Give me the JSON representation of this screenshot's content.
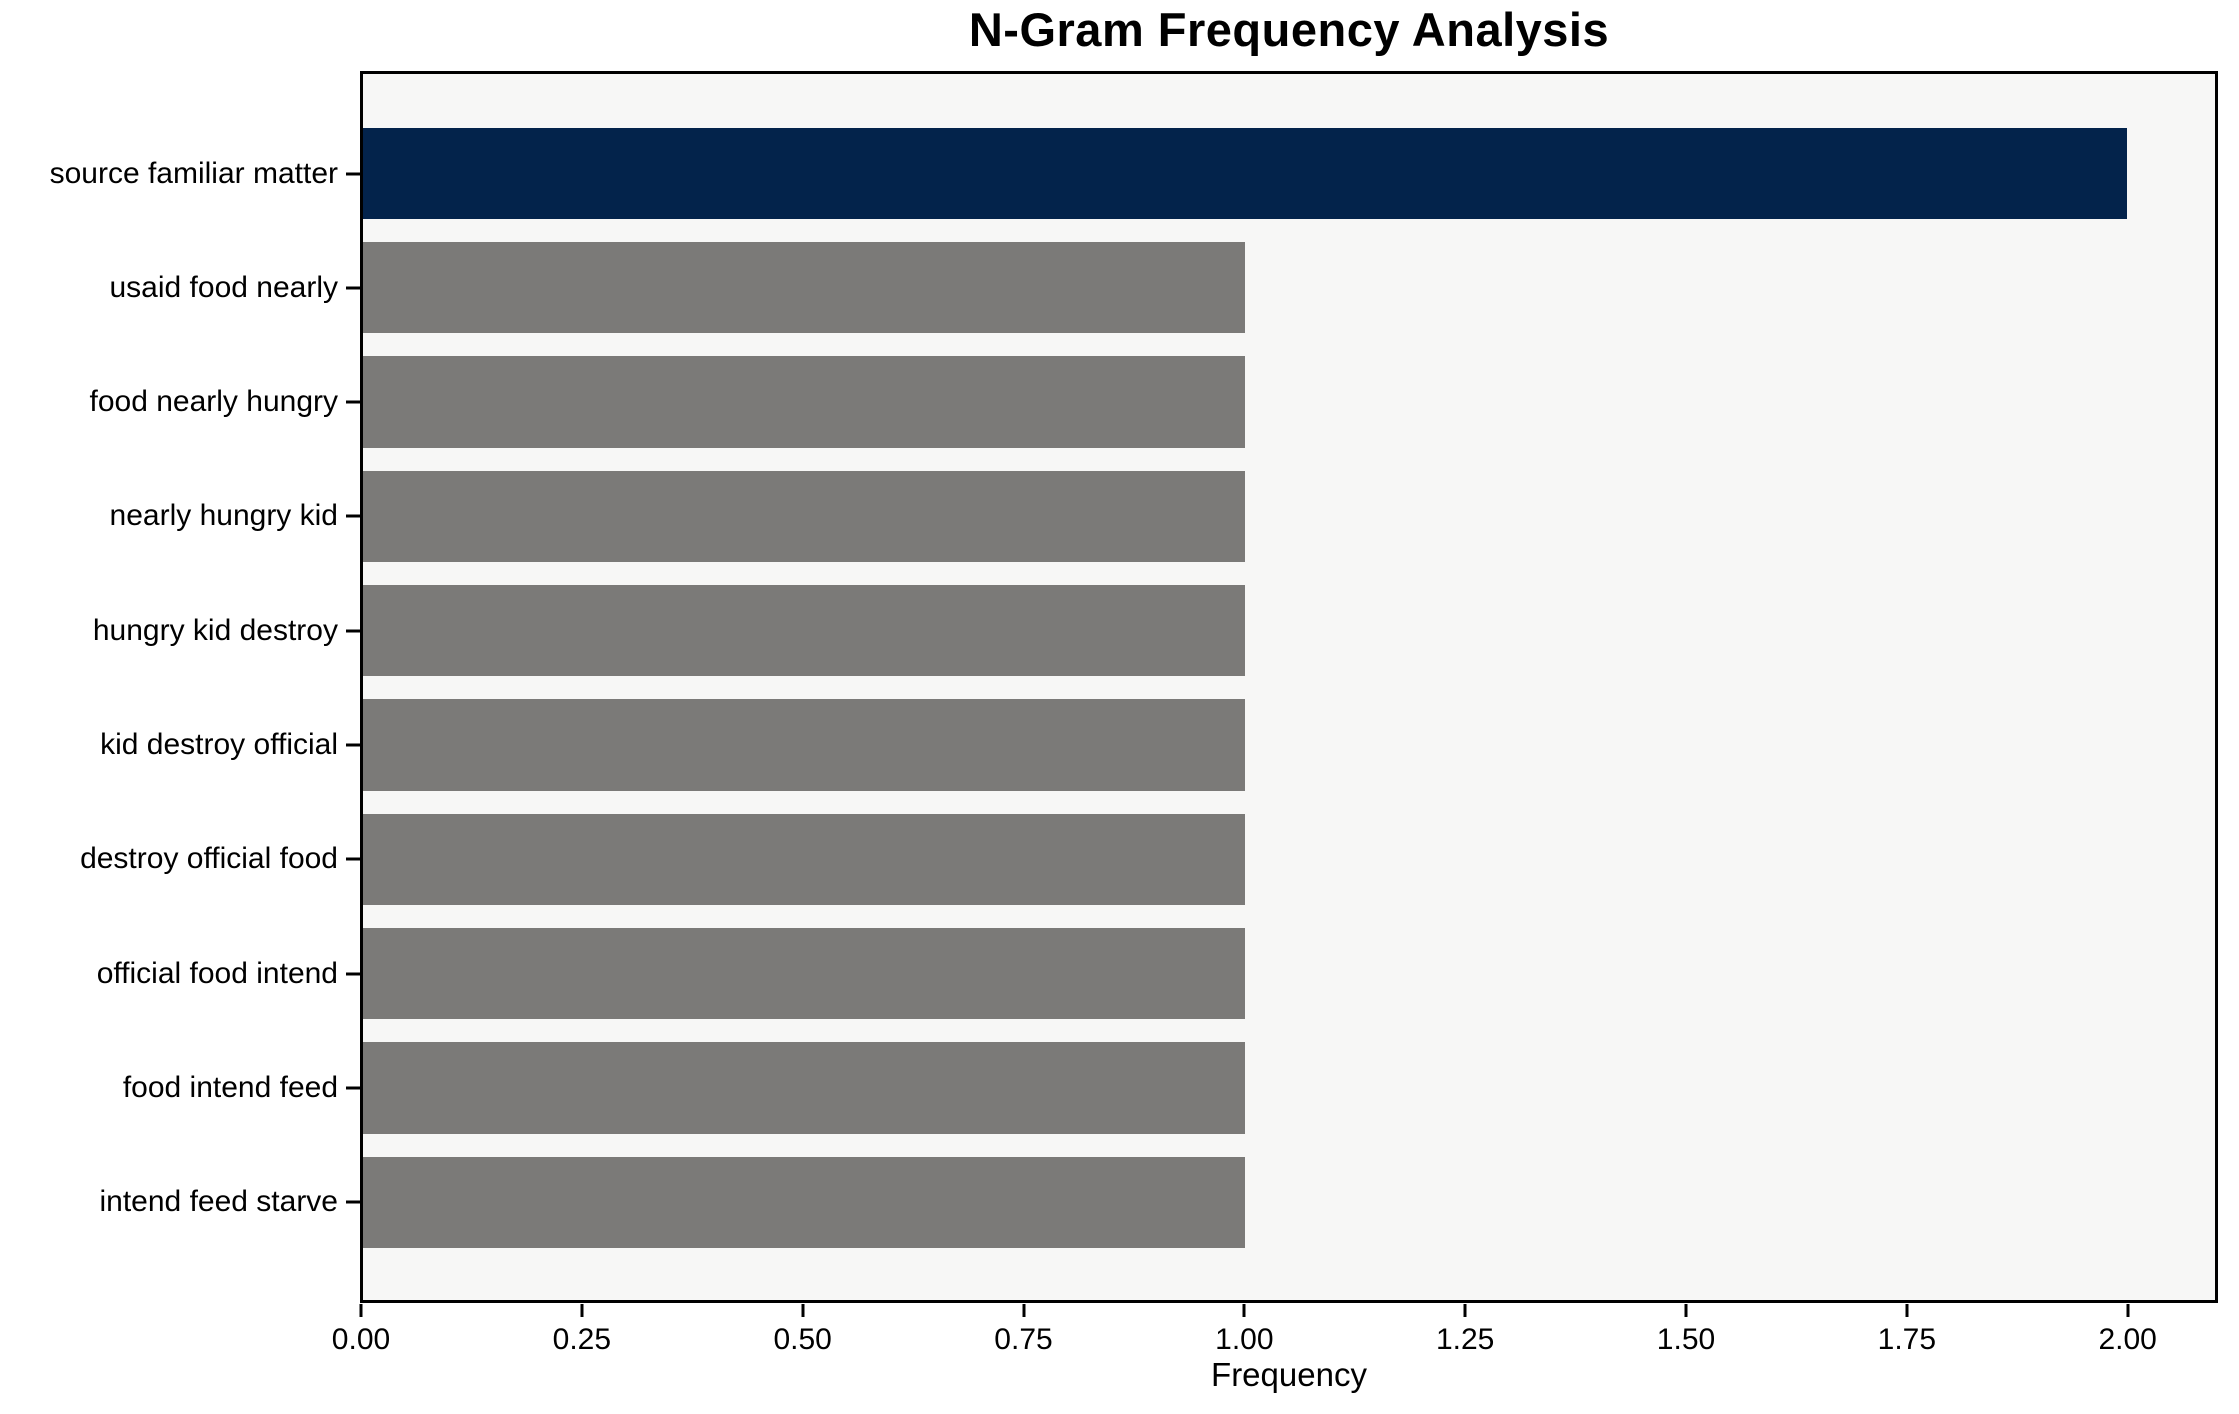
{
  "chart": {
    "title": "N-Gram Frequency Analysis",
    "xlabel": "Frequency"
  },
  "chart_data": {
    "type": "bar",
    "orientation": "horizontal",
    "title": "N-Gram Frequency Analysis",
    "xlabel": "Frequency",
    "ylabel": "",
    "categories": [
      "source familiar matter",
      "usaid food nearly",
      "food nearly hungry",
      "nearly hungry kid",
      "hungry kid destroy",
      "kid destroy official",
      "destroy official food",
      "official food intend",
      "food intend feed",
      "intend feed starve"
    ],
    "values": [
      2,
      1,
      1,
      1,
      1,
      1,
      1,
      1,
      1,
      1
    ],
    "bar_colors": [
      "#03234B",
      "#7B7A78",
      "#7B7A78",
      "#7B7A78",
      "#7B7A78",
      "#7B7A78",
      "#7B7A78",
      "#7B7A78",
      "#7B7A78",
      "#7B7A78"
    ],
    "xlim": [
      0,
      2.1
    ],
    "xticks": [
      0,
      0.25,
      0.5,
      0.75,
      1.0,
      1.25,
      1.5,
      1.75,
      2.0
    ],
    "xtick_labels": [
      "0.00",
      "0.25",
      "0.50",
      "0.75",
      "1.00",
      "1.25",
      "1.50",
      "1.75",
      "2.00"
    ],
    "grid": false,
    "legend": null,
    "colors": {
      "highlight_bar": "#03234B",
      "default_bar": "#7B7A78",
      "plot_background": "#F7F7F6",
      "figure_background": "#FFFFFF",
      "spine": "#000000",
      "text": "#000000"
    }
  }
}
